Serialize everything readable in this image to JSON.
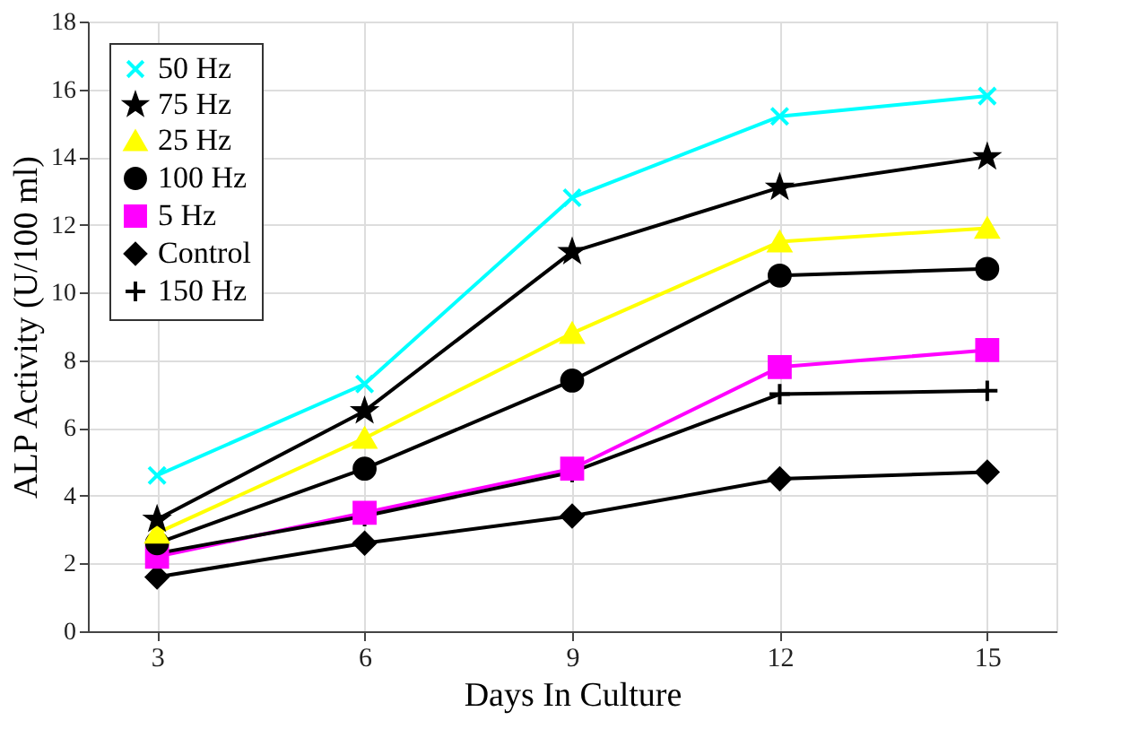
{
  "chart_data": {
    "type": "line",
    "xlabel": "Days In Culture",
    "ylabel": "ALP Activity (U/100 ml)",
    "x": [
      3,
      6,
      9,
      12,
      15
    ],
    "series": [
      {
        "name": "50 Hz",
        "color": "#00ffff",
        "marker": "x",
        "values": [
          4.6,
          7.3,
          12.8,
          15.2,
          15.8
        ]
      },
      {
        "name": "75 Hz",
        "color": "#000000",
        "marker": "star",
        "values": [
          3.3,
          6.5,
          11.2,
          13.1,
          14.0
        ]
      },
      {
        "name": "25 Hz",
        "color": "#ffff00",
        "marker": "triangle",
        "values": [
          2.9,
          5.7,
          8.8,
          11.5,
          11.9
        ]
      },
      {
        "name": "100 Hz",
        "color": "#000000",
        "marker": "circle",
        "values": [
          2.6,
          4.8,
          7.4,
          10.5,
          10.7
        ]
      },
      {
        "name": "5 Hz",
        "color": "#ff00ff",
        "marker": "square",
        "values": [
          2.2,
          3.5,
          4.8,
          7.8,
          8.3
        ]
      },
      {
        "name": "Control",
        "color": "#000000",
        "marker": "diamond",
        "values": [
          1.6,
          2.6,
          3.4,
          4.5,
          4.7
        ]
      },
      {
        "name": "150 Hz",
        "color": "#000000",
        "marker": "plus",
        "values": [
          2.3,
          3.4,
          4.7,
          7.0,
          7.1
        ]
      }
    ],
    "xlim": [
      2,
      16
    ],
    "xticks": [
      3,
      6,
      9,
      12,
      15
    ],
    "ylim": [
      0,
      18
    ],
    "yticks": [
      0,
      2,
      4,
      6,
      8,
      10,
      12,
      14,
      16,
      18
    ],
    "grid": true,
    "legend": "top left",
    "line_style": "solid"
  }
}
